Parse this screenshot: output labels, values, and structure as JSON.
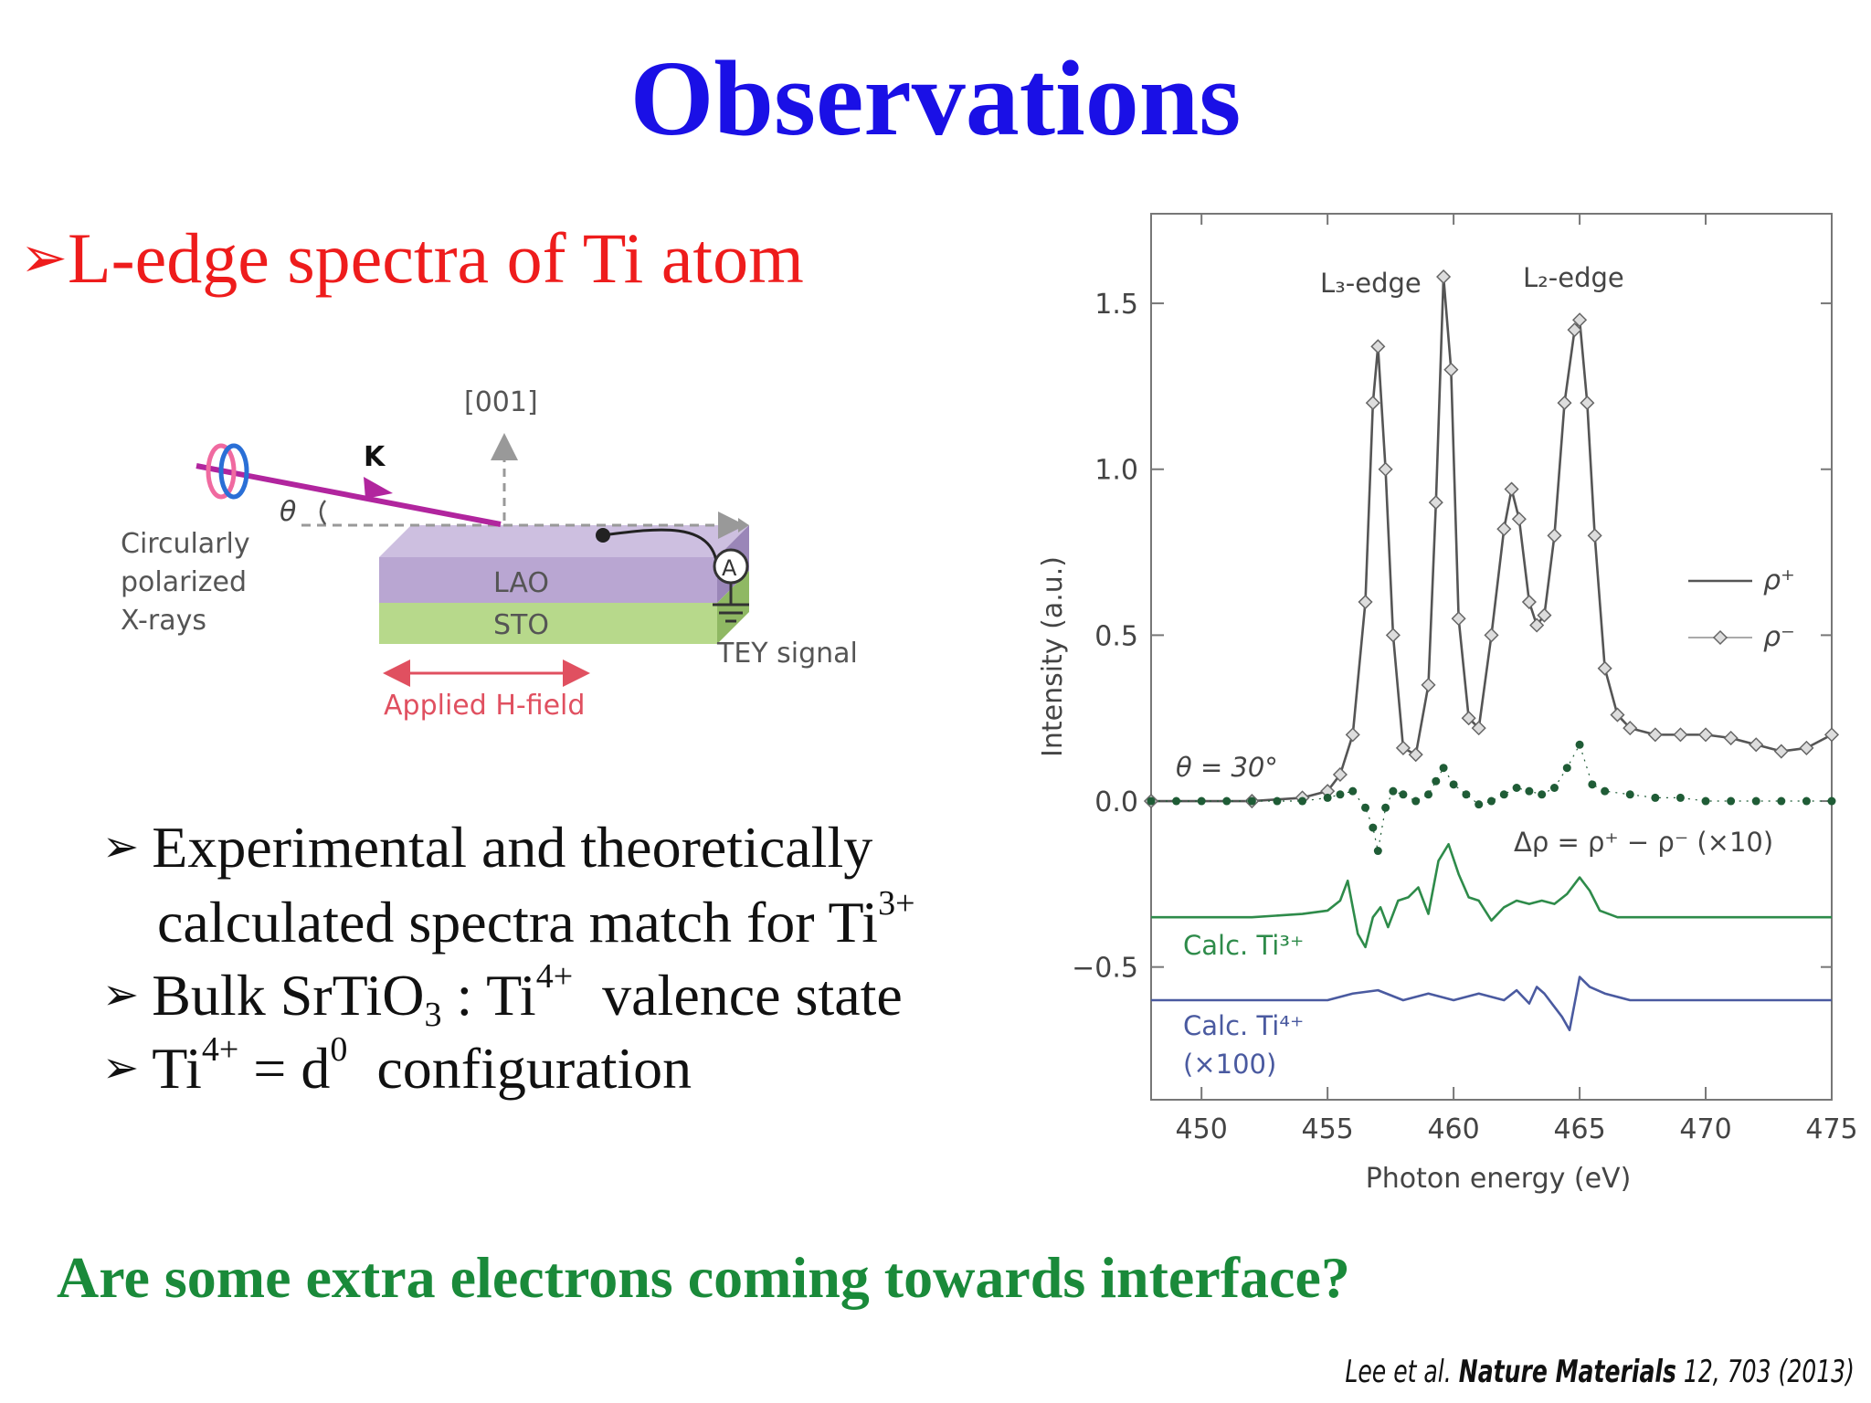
{
  "slide": {
    "title": "Observations",
    "main_bullet": "L-edge spectra of Ti atom",
    "question": "Are some extra electrons coming towards interface?",
    "points": [
      {
        "pre": "Experimental and theoretically",
        "sup": ""
      },
      {
        "pre": "calculated spectra match for Ti",
        "sup": "3+"
      },
      {
        "pre": "Bulk SrTiO",
        "sub": "3",
        "mid": " : Ti",
        "sup": "4+",
        "post": "  valence state"
      },
      {
        "pre": "Ti",
        "sup": "4+",
        "mid": " = d",
        "sup2": "0",
        "post": "  configuration"
      }
    ],
    "citation": {
      "authors": "Lee et al.",
      "journal": "Nature Materials",
      "ref": " 12, 703 (2013)"
    }
  },
  "diagram": {
    "direction_label": "[001]",
    "k_label": "K",
    "theta_label": "θ",
    "xray_label": [
      "Circularly",
      "polarized",
      "X-rays"
    ],
    "top_layer": "LAO",
    "bottom_layer": "STO",
    "field_label": "Applied H-field",
    "signal_label": "TEY signal",
    "ammeter_label": "A",
    "colors": {
      "arrow": "#b1259e",
      "lao": "#b9a6d2",
      "sto": "#b7d98b",
      "field": "#e05060",
      "pink_ring": "#f06aa0",
      "blue_ring": "#2a6fd6"
    }
  },
  "chart_data": {
    "type": "line",
    "xlabel": "Photon energy (eV)",
    "ylabel": "Intensity (a.u.)",
    "xlim": [
      448,
      475
    ],
    "ylim": [
      -0.9,
      1.77
    ],
    "xticks": [
      "450",
      "455",
      "460",
      "465",
      "470",
      "475"
    ],
    "yticks": [
      "1.5",
      "1.0",
      "0.5",
      "0.0",
      "−0.5"
    ],
    "ytick_values": [
      1.5,
      1.0,
      0.5,
      0.0,
      -0.5
    ],
    "xtick_values": [
      450,
      455,
      460,
      465,
      470,
      475
    ],
    "grid": false,
    "legend": {
      "position": "right",
      "entries": [
        "ρ⁺",
        "ρ⁻"
      ]
    },
    "annotations": {
      "l3": "L₃-edge",
      "l2": "L₂-edge",
      "theta": "θ = 30°",
      "delta": "Δρ = ρ⁺ − ρ⁻ (×10)",
      "calc_ti3": "Calc. Ti³⁺",
      "calc_ti4": [
        "Calc. Ti⁴⁺",
        "(×100)"
      ]
    },
    "series": [
      {
        "name": "ρ⁺",
        "color": "#555555",
        "style": "line",
        "x": [
          448,
          452,
          454,
          455,
          455.5,
          456,
          456.5,
          456.8,
          457,
          457.3,
          457.6,
          458,
          458.5,
          459,
          459.3,
          459.6,
          459.9,
          460.2,
          460.6,
          461,
          461.5,
          462,
          462.3,
          462.6,
          463,
          463.3,
          463.6,
          464,
          464.4,
          464.8,
          465,
          465.3,
          465.6,
          466,
          466.5,
          467,
          468,
          469,
          470,
          471,
          472,
          473,
          474,
          475
        ],
        "y": [
          0,
          0,
          0.01,
          0.03,
          0.08,
          0.2,
          0.6,
          1.2,
          1.37,
          1.0,
          0.5,
          0.16,
          0.14,
          0.35,
          0.9,
          1.58,
          1.3,
          0.55,
          0.25,
          0.22,
          0.5,
          0.82,
          0.94,
          0.85,
          0.6,
          0.53,
          0.56,
          0.8,
          1.2,
          1.42,
          1.45,
          1.2,
          0.8,
          0.4,
          0.26,
          0.22,
          0.2,
          0.2,
          0.2,
          0.19,
          0.17,
          0.15,
          0.16,
          0.2
        ]
      },
      {
        "name": "ρ⁻",
        "color": "#555555",
        "style": "marker",
        "x": [
          448,
          452,
          454,
          455,
          455.5,
          456,
          456.5,
          456.8,
          457,
          457.3,
          457.6,
          458,
          458.5,
          459,
          459.3,
          459.6,
          459.9,
          460.2,
          460.6,
          461,
          461.5,
          462,
          462.3,
          462.6,
          463,
          463.3,
          463.6,
          464,
          464.4,
          464.8,
          465,
          465.3,
          465.6,
          466,
          466.5,
          467,
          468,
          469,
          470,
          471,
          472,
          473,
          474,
          475
        ],
        "y": [
          0,
          0,
          0.01,
          0.03,
          0.08,
          0.2,
          0.6,
          1.2,
          1.37,
          1.0,
          0.5,
          0.16,
          0.14,
          0.35,
          0.9,
          1.58,
          1.3,
          0.55,
          0.25,
          0.22,
          0.5,
          0.82,
          0.94,
          0.85,
          0.6,
          0.53,
          0.56,
          0.8,
          1.2,
          1.42,
          1.45,
          1.2,
          0.8,
          0.4,
          0.26,
          0.22,
          0.2,
          0.2,
          0.2,
          0.19,
          0.17,
          0.15,
          0.16,
          0.2
        ]
      },
      {
        "name": "Δρ",
        "color": "#1f5c36",
        "style": "dots",
        "x": [
          448,
          449,
          450,
          451,
          452,
          453,
          454,
          455,
          455.5,
          456,
          456.5,
          456.8,
          457,
          457.3,
          457.6,
          458,
          458.5,
          459,
          459.3,
          459.6,
          460,
          460.5,
          461,
          461.5,
          462,
          462.5,
          463,
          463.5,
          464,
          464.5,
          465,
          465.5,
          466,
          467,
          468,
          469,
          470,
          471,
          472,
          473,
          474,
          475
        ],
        "y": [
          0,
          0,
          0,
          0,
          0,
          0,
          0,
          0.01,
          0.02,
          0.03,
          -0.02,
          -0.08,
          -0.15,
          -0.02,
          0.03,
          0.02,
          0.0,
          0.02,
          0.06,
          0.1,
          0.05,
          0.02,
          -0.01,
          0.0,
          0.02,
          0.04,
          0.03,
          0.02,
          0.04,
          0.1,
          0.17,
          0.05,
          0.03,
          0.02,
          0.01,
          0.01,
          0.0,
          0.0,
          0.0,
          0.0,
          0.0,
          0.0
        ]
      },
      {
        "name": "Calc. Ti³⁺",
        "color": "#2e8b4a",
        "style": "line",
        "x": [
          448,
          452,
          454,
          455,
          455.5,
          455.8,
          456.2,
          456.5,
          456.8,
          457.1,
          457.4,
          457.8,
          458.2,
          458.6,
          459,
          459.4,
          459.8,
          460.2,
          460.6,
          461,
          461.5,
          462,
          462.5,
          463,
          463.5,
          464,
          464.5,
          465,
          465.4,
          465.8,
          466.5,
          468,
          470,
          472,
          475
        ],
        "y": [
          -0.35,
          -0.35,
          -0.34,
          -0.33,
          -0.3,
          -0.24,
          -0.4,
          -0.44,
          -0.35,
          -0.32,
          -0.38,
          -0.3,
          -0.29,
          -0.26,
          -0.34,
          -0.18,
          -0.13,
          -0.22,
          -0.29,
          -0.3,
          -0.36,
          -0.32,
          -0.3,
          -0.31,
          -0.3,
          -0.31,
          -0.28,
          -0.23,
          -0.27,
          -0.33,
          -0.35,
          -0.35,
          -0.35,
          -0.35,
          -0.35
        ]
      },
      {
        "name": "Calc. Ti⁴⁺",
        "color": "#4a5aa0",
        "style": "line",
        "x": [
          448,
          452,
          454,
          455,
          456,
          457,
          458,
          459,
          460,
          461,
          462,
          462.5,
          463,
          463.3,
          463.6,
          464,
          464.3,
          464.6,
          465,
          465.4,
          466,
          467,
          469,
          471,
          475
        ],
        "y": [
          -0.6,
          -0.6,
          -0.6,
          -0.6,
          -0.58,
          -0.57,
          -0.6,
          -0.58,
          -0.6,
          -0.58,
          -0.6,
          -0.57,
          -0.61,
          -0.56,
          -0.58,
          -0.62,
          -0.65,
          -0.69,
          -0.53,
          -0.56,
          -0.58,
          -0.6,
          -0.6,
          -0.6,
          -0.6
        ]
      }
    ]
  }
}
